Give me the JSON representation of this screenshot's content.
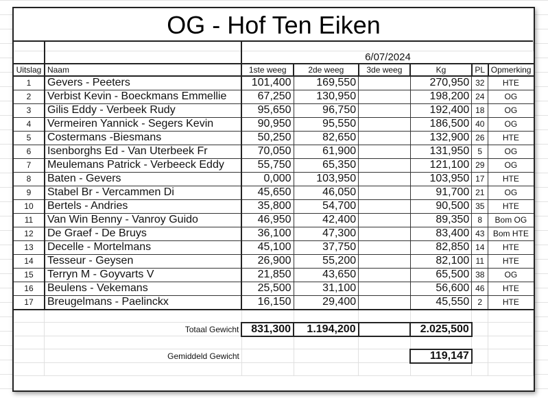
{
  "title": "OG - Hof Ten Eiken",
  "date": "6/07/2024",
  "headers": {
    "rank": "Uitslag",
    "name": "Naam",
    "w1": "1ste weeg",
    "w2": "2de weeg",
    "w3": "3de weeg",
    "kg": "Kg",
    "pl": "PL",
    "remark": "Opmerking"
  },
  "rows": [
    {
      "rank": "1",
      "name": "Gevers - Peeters",
      "w1": "101,400",
      "w2": "169,550",
      "w3": "",
      "kg": "270,950",
      "pl": "32",
      "remark": "HTE"
    },
    {
      "rank": "2",
      "name": "Verbist Kevin - Boeckmans Emmellie",
      "w1": "67,250",
      "w2": "130,950",
      "w3": "",
      "kg": "198,200",
      "pl": "24",
      "remark": "OG"
    },
    {
      "rank": "3",
      "name": "Gilis Eddy - Verbeek Rudy",
      "w1": "95,650",
      "w2": "96,750",
      "w3": "",
      "kg": "192,400",
      "pl": "18",
      "remark": "OG"
    },
    {
      "rank": "4",
      "name": "Vermeiren Yannick - Segers Kevin",
      "w1": "90,950",
      "w2": "95,550",
      "w3": "",
      "kg": "186,500",
      "pl": "40",
      "remark": "OG"
    },
    {
      "rank": "5",
      "name": "Costermans -Biesmans",
      "w1": "50,250",
      "w2": "82,650",
      "w3": "",
      "kg": "132,900",
      "pl": "26",
      "remark": "HTE"
    },
    {
      "rank": "6",
      "name": "Isenborghs Ed - Van Uterbeek Fr",
      "w1": "70,050",
      "w2": "61,900",
      "w3": "",
      "kg": "131,950",
      "pl": "5",
      "remark": "OG"
    },
    {
      "rank": "7",
      "name": "Meulemans Patrick - Verbeeck Eddy",
      "w1": "55,750",
      "w2": "65,350",
      "w3": "",
      "kg": "121,100",
      "pl": "29",
      "remark": "OG"
    },
    {
      "rank": "8",
      "name": "Baten - Gevers",
      "w1": "0,000",
      "w2": "103,950",
      "w3": "",
      "kg": "103,950",
      "pl": "17",
      "remark": "HTE"
    },
    {
      "rank": "9",
      "name": "Stabel Br - Vercammen Di",
      "w1": "45,650",
      "w2": "46,050",
      "w3": "",
      "kg": "91,700",
      "pl": "21",
      "remark": "OG"
    },
    {
      "rank": "10",
      "name": "Bertels - Andries",
      "w1": "35,800",
      "w2": "54,700",
      "w3": "",
      "kg": "90,500",
      "pl": "35",
      "remark": "HTE"
    },
    {
      "rank": "11",
      "name": "Van Win Benny - Vanroy Guido",
      "w1": "46,950",
      "w2": "42,400",
      "w3": "",
      "kg": "89,350",
      "pl": "8",
      "remark": "Bom OG"
    },
    {
      "rank": "12",
      "name": "De Graef - De Bruys",
      "w1": "36,100",
      "w2": "47,300",
      "w3": "",
      "kg": "83,400",
      "pl": "43",
      "remark": "Bom HTE"
    },
    {
      "rank": "13",
      "name": "Decelle - Mortelmans",
      "w1": "45,100",
      "w2": "37,750",
      "w3": "",
      "kg": "82,850",
      "pl": "14",
      "remark": "HTE"
    },
    {
      "rank": "14",
      "name": "Tesseur - Geysen",
      "w1": "26,900",
      "w2": "55,200",
      "w3": "",
      "kg": "82,100",
      "pl": "11",
      "remark": "HTE"
    },
    {
      "rank": "15",
      "name": "Terryn M - Goyvarts V",
      "w1": "21,850",
      "w2": "43,650",
      "w3": "",
      "kg": "65,500",
      "pl": "38",
      "remark": "OG"
    },
    {
      "rank": "16",
      "name": "Beulens - Vekemans",
      "w1": "25,500",
      "w2": "31,100",
      "w3": "",
      "kg": "56,600",
      "pl": "46",
      "remark": "HTE"
    },
    {
      "rank": "17",
      "name": "Breugelmans - Paelinckx",
      "w1": "16,150",
      "w2": "29,400",
      "w3": "",
      "kg": "45,550",
      "pl": "2",
      "remark": "HTE"
    }
  ],
  "totals": {
    "label": "Totaal Gewicht",
    "w1": "831,300",
    "w2": "1.194,200",
    "kg": "2.025,500"
  },
  "average": {
    "label": "Gemiddeld Gewicht",
    "kg": "119,147"
  }
}
